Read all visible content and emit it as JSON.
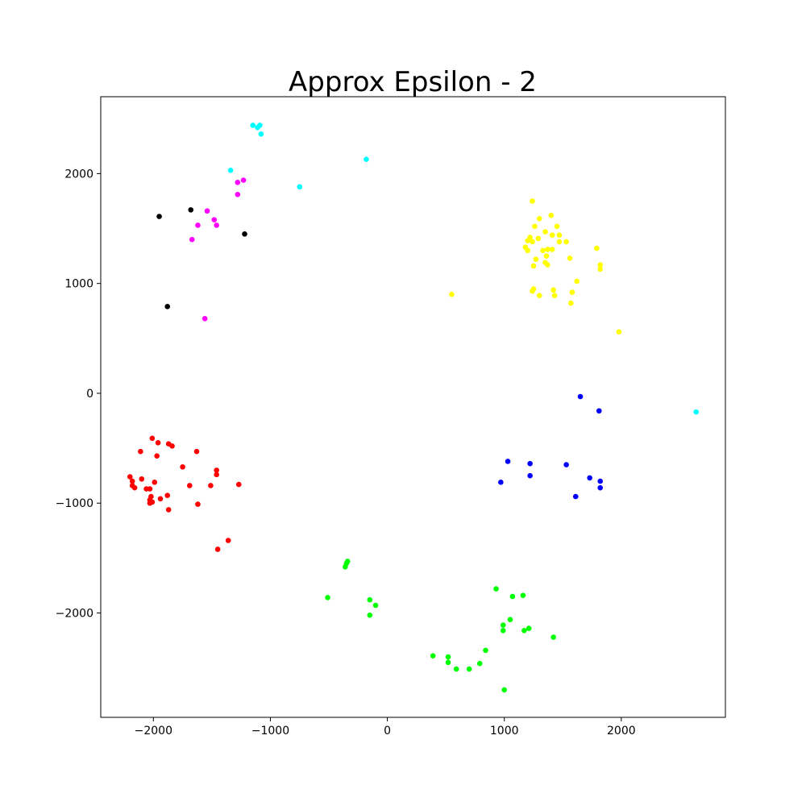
{
  "chart_data": {
    "type": "scatter",
    "title": "Approx Epsilon - 2",
    "xlabel": "",
    "ylabel": "",
    "xlim": [
      -2450,
      2890
    ],
    "ylim": [
      -2950,
      2700
    ],
    "x_ticks": [
      -2000,
      -1000,
      0,
      1000,
      2000
    ],
    "x_tick_labels": [
      "−2000",
      "−1000",
      "0",
      "1000",
      "2000"
    ],
    "y_ticks": [
      -2000,
      -1000,
      0,
      1000,
      2000
    ],
    "y_tick_labels": [
      "−2000",
      "−1000",
      "0",
      "1000",
      "2000"
    ],
    "grid": false,
    "series": [
      {
        "color": "#00ffff",
        "points": [
          [
            -1150,
            2440
          ],
          [
            -1110,
            2420
          ],
          [
            -1090,
            2440
          ],
          [
            -1080,
            2360
          ],
          [
            -1340,
            2030
          ],
          [
            -750,
            1880
          ],
          [
            -180,
            2130
          ],
          [
            2640,
            -170
          ]
        ]
      },
      {
        "color": "#ff00ff",
        "points": [
          [
            -1230,
            1940
          ],
          [
            -1280,
            1920
          ],
          [
            -1280,
            1810
          ],
          [
            -1540,
            1660
          ],
          [
            -1480,
            1580
          ],
          [
            -1460,
            1530
          ],
          [
            -1620,
            1530
          ],
          [
            -1670,
            1400
          ],
          [
            -1560,
            680
          ]
        ]
      },
      {
        "color": "#000000",
        "points": [
          [
            -1950,
            1610
          ],
          [
            -1680,
            1670
          ],
          [
            -1220,
            1450
          ],
          [
            -1880,
            790
          ]
        ]
      },
      {
        "color": "#ffff00",
        "points": [
          [
            1240,
            1750
          ],
          [
            1400,
            1620
          ],
          [
            1300,
            1590
          ],
          [
            1260,
            1520
          ],
          [
            1450,
            1520
          ],
          [
            1350,
            1470
          ],
          [
            1220,
            1420
          ],
          [
            1200,
            1390
          ],
          [
            1290,
            1410
          ],
          [
            1410,
            1440
          ],
          [
            1470,
            1440
          ],
          [
            1180,
            1330
          ],
          [
            1200,
            1300
          ],
          [
            1240,
            1380
          ],
          [
            1530,
            1380
          ],
          [
            1470,
            1380
          ],
          [
            1330,
            1300
          ],
          [
            1370,
            1310
          ],
          [
            1410,
            1310
          ],
          [
            1360,
            1250
          ],
          [
            1560,
            1230
          ],
          [
            1270,
            1220
          ],
          [
            1350,
            1190
          ],
          [
            1370,
            1170
          ],
          [
            1250,
            1160
          ],
          [
            1790,
            1320
          ],
          [
            1820,
            1170
          ],
          [
            1820,
            1130
          ],
          [
            1620,
            1020
          ],
          [
            1250,
            950
          ],
          [
            1240,
            930
          ],
          [
            1300,
            890
          ],
          [
            1420,
            940
          ],
          [
            1430,
            890
          ],
          [
            1580,
            920
          ],
          [
            1570,
            820
          ],
          [
            550,
            900
          ],
          [
            1980,
            560
          ]
        ]
      },
      {
        "color": "#0000ff",
        "points": [
          [
            1650,
            -30
          ],
          [
            1810,
            -160
          ],
          [
            1030,
            -620
          ],
          [
            1220,
            -640
          ],
          [
            1530,
            -650
          ],
          [
            1730,
            -770
          ],
          [
            1220,
            -750
          ],
          [
            970,
            -810
          ],
          [
            1820,
            -800
          ],
          [
            1820,
            -860
          ],
          [
            1610,
            -940
          ]
        ]
      },
      {
        "color": "#ff0000",
        "points": [
          [
            -2010,
            -410
          ],
          [
            -1960,
            -450
          ],
          [
            -1870,
            -460
          ],
          [
            -1840,
            -480
          ],
          [
            -1970,
            -570
          ],
          [
            -2110,
            -530
          ],
          [
            -1630,
            -530
          ],
          [
            -1750,
            -670
          ],
          [
            -1460,
            -700
          ],
          [
            -1460,
            -740
          ],
          [
            -2200,
            -760
          ],
          [
            -2100,
            -780
          ],
          [
            -2180,
            -800
          ],
          [
            -2180,
            -840
          ],
          [
            -2160,
            -860
          ],
          [
            -1990,
            -810
          ],
          [
            -2060,
            -870
          ],
          [
            -2030,
            -870
          ],
          [
            -1510,
            -840
          ],
          [
            -1690,
            -840
          ],
          [
            -1270,
            -830
          ],
          [
            -1880,
            -930
          ],
          [
            -1940,
            -960
          ],
          [
            -2020,
            -940
          ],
          [
            -2030,
            -970
          ],
          [
            -2030,
            -1000
          ],
          [
            -2010,
            -990
          ],
          [
            -1620,
            -1010
          ],
          [
            -1870,
            -1060
          ],
          [
            -1360,
            -1340
          ],
          [
            -1450,
            -1420
          ]
        ]
      },
      {
        "color": "#00ff00",
        "points": [
          [
            -340,
            -1530
          ],
          [
            -350,
            -1550
          ],
          [
            -360,
            -1580
          ],
          [
            -510,
            -1860
          ],
          [
            -150,
            -1880
          ],
          [
            -100,
            -1930
          ],
          [
            -150,
            -2020
          ],
          [
            930,
            -1780
          ],
          [
            1070,
            -1850
          ],
          [
            1160,
            -1840
          ],
          [
            1050,
            -2060
          ],
          [
            990,
            -2110
          ],
          [
            990,
            -2160
          ],
          [
            1170,
            -2160
          ],
          [
            1210,
            -2140
          ],
          [
            1420,
            -2220
          ],
          [
            840,
            -2340
          ],
          [
            390,
            -2390
          ],
          [
            520,
            -2400
          ],
          [
            520,
            -2450
          ],
          [
            790,
            -2460
          ],
          [
            590,
            -2510
          ],
          [
            700,
            -2510
          ],
          [
            1000,
            -2700
          ]
        ]
      }
    ]
  }
}
